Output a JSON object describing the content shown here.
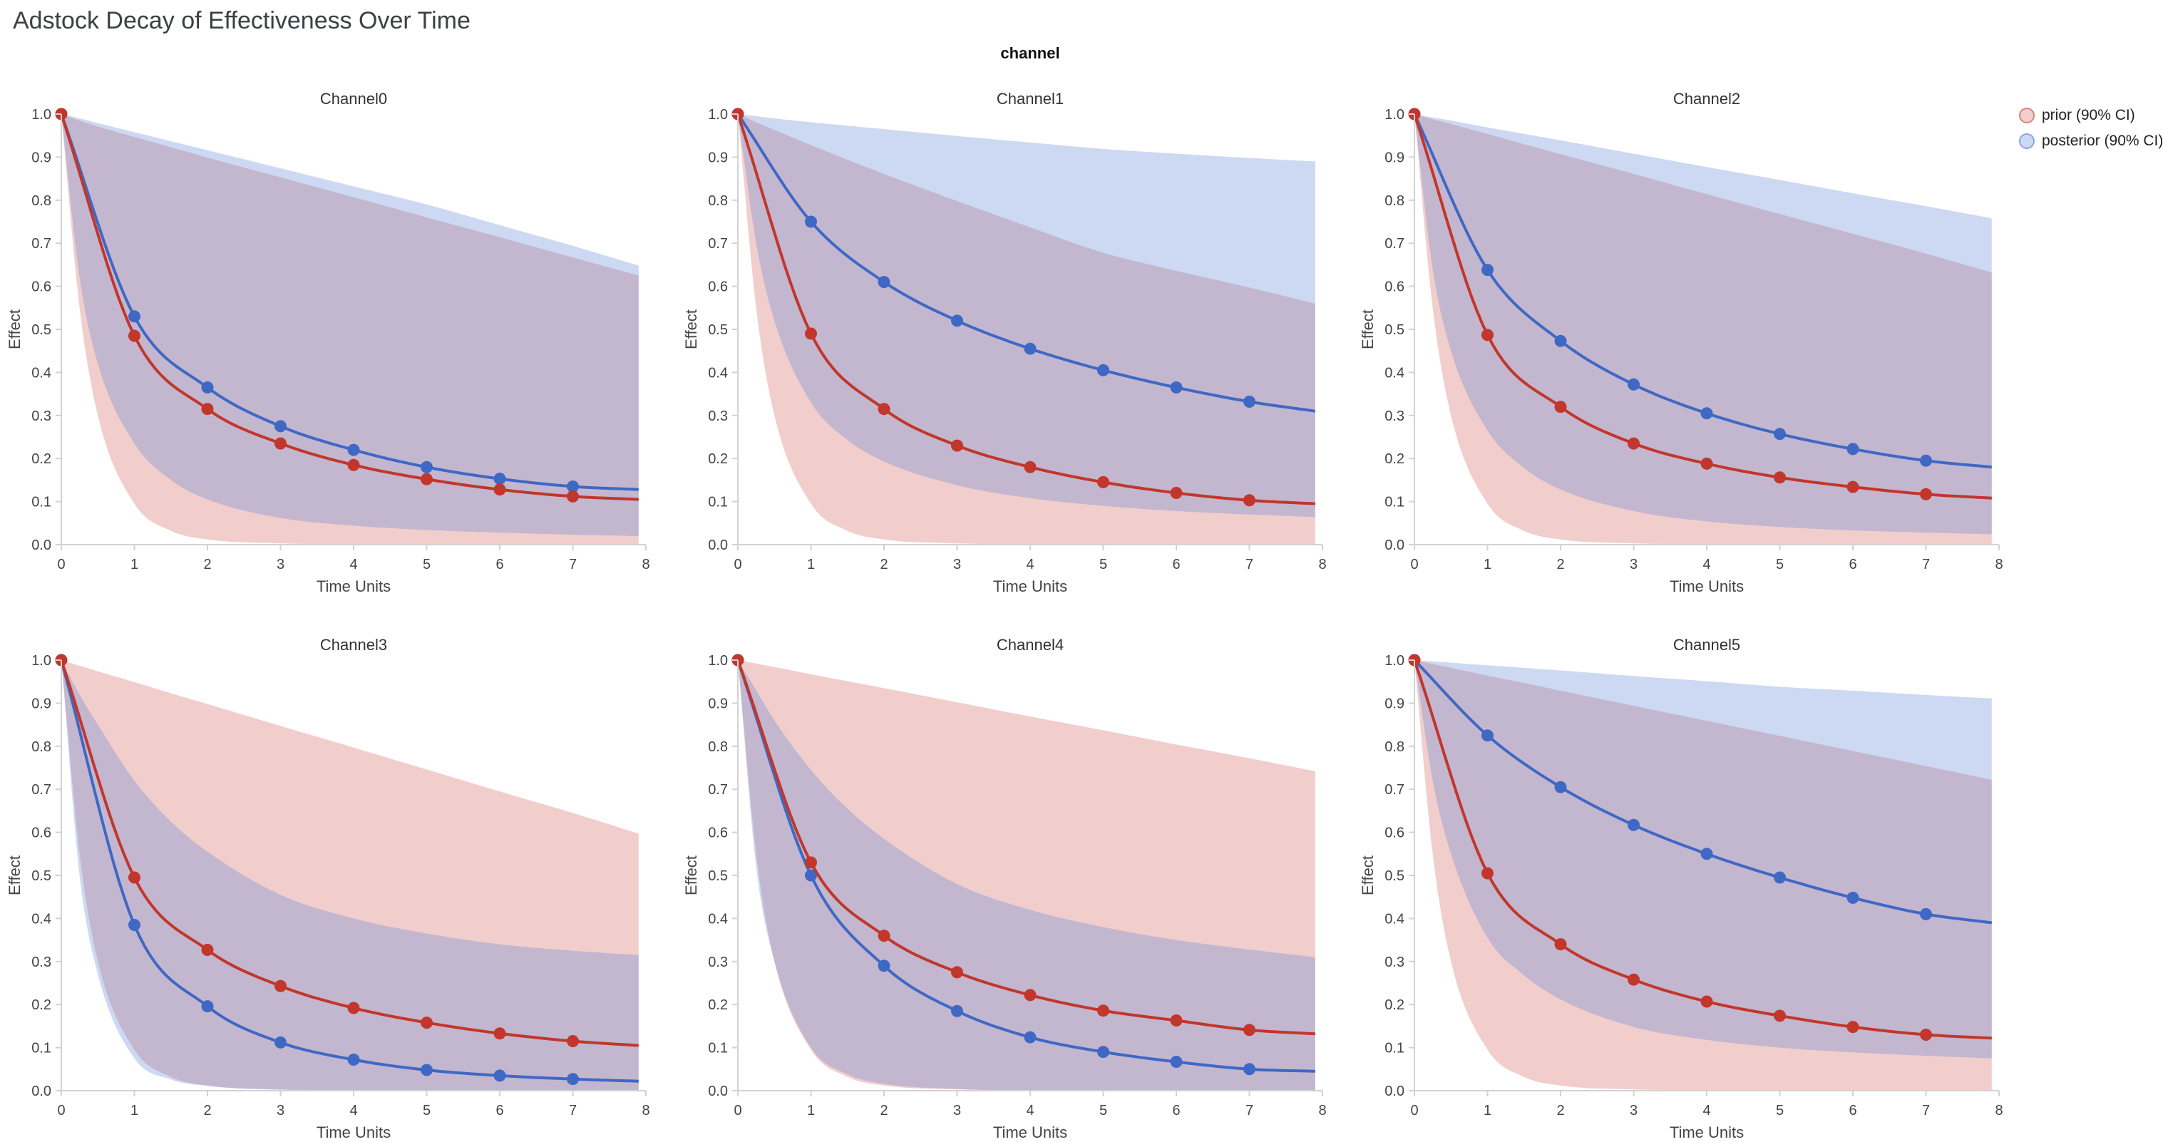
{
  "title": "Adstock Decay of Effectiveness Over Time",
  "chart_data": {
    "type": "line",
    "title": "Adstock Decay of Effectiveness Over Time",
    "facet_title": "channel",
    "xlabel": "Time Units",
    "ylabel": "Effect",
    "xlim": [
      0,
      8
    ],
    "ylim": [
      0,
      1
    ],
    "xticks": [
      0,
      1,
      2,
      3,
      4,
      5,
      6,
      7,
      8
    ],
    "yticks": [
      0,
      0.1,
      0.2,
      0.3,
      0.4,
      0.5,
      0.6,
      0.7,
      0.8,
      0.9,
      1
    ],
    "grid": false,
    "legend_position": "right-top",
    "legend_items": [
      {
        "key": "prior",
        "label": "prior (90% CI)"
      },
      {
        "key": "posterior",
        "label": "posterior (90% CI)"
      }
    ],
    "series_colors": {
      "prior": "#C2362B",
      "posterior": "#3F68C5"
    },
    "band_colors": {
      "prior": "rgba(205,80,72,0.28)",
      "posterior": "rgba(90,130,215,0.30)"
    },
    "marker_x": [
      0,
      1,
      2,
      3,
      4,
      5,
      6,
      7
    ],
    "line_x": [
      0,
      1,
      2,
      3,
      4,
      5,
      6,
      7,
      7.9
    ],
    "band_x": [
      0,
      0.25,
      0.5,
      1,
      1.5,
      2,
      3,
      4,
      5,
      6,
      7,
      7.9
    ],
    "facets": [
      {
        "name": "Channel0",
        "prior": {
          "mean": [
            1,
            0.485,
            0.315,
            0.235,
            0.185,
            0.152,
            0.128,
            0.112,
            0.105
          ],
          "upper": [
            1,
            0.985,
            0.971,
            0.947,
            0.923,
            0.899,
            0.853,
            0.807,
            0.76,
            0.714,
            0.667,
            0.625
          ],
          "lower": [
            1,
            0.55,
            0.3,
            0.095,
            0.032,
            0.012,
            0.003,
            0.001,
            0.001,
            0.001,
            0.001,
            0.001
          ]
        },
        "posterior": {
          "mean": [
            1,
            0.53,
            0.365,
            0.275,
            0.22,
            0.18,
            0.153,
            0.135,
            0.128
          ],
          "upper": [
            1,
            0.99,
            0.979,
            0.958,
            0.937,
            0.916,
            0.874,
            0.832,
            0.79,
            0.742,
            0.694,
            0.648
          ],
          "lower": [
            1,
            0.62,
            0.42,
            0.235,
            0.15,
            0.105,
            0.062,
            0.044,
            0.034,
            0.028,
            0.023,
            0.02
          ]
        }
      },
      {
        "name": "Channel1",
        "prior": {
          "mean": [
            1,
            0.49,
            0.315,
            0.23,
            0.18,
            0.145,
            0.12,
            0.103,
            0.095
          ],
          "upper": [
            1,
            0.981,
            0.963,
            0.928,
            0.894,
            0.861,
            0.798,
            0.737,
            0.678,
            0.636,
            0.597,
            0.56
          ],
          "lower": [
            1,
            0.55,
            0.3,
            0.095,
            0.032,
            0.012,
            0.003,
            0.001,
            0.001,
            0.001,
            0.001,
            0.001
          ]
        },
        "posterior": {
          "mean": [
            1,
            0.75,
            0.61,
            0.52,
            0.455,
            0.405,
            0.365,
            0.332,
            0.31
          ],
          "upper": [
            1,
            0.995,
            0.99,
            0.981,
            0.973,
            0.965,
            0.949,
            0.934,
            0.919,
            0.908,
            0.898,
            0.89
          ],
          "lower": [
            1,
            0.7,
            0.52,
            0.33,
            0.243,
            0.193,
            0.138,
            0.108,
            0.09,
            0.078,
            0.07,
            0.064
          ]
        }
      },
      {
        "name": "Channel2",
        "prior": {
          "mean": [
            1,
            0.487,
            0.32,
            0.235,
            0.188,
            0.156,
            0.134,
            0.117,
            0.108
          ],
          "upper": [
            1,
            0.988,
            0.977,
            0.954,
            0.93,
            0.907,
            0.861,
            0.814,
            0.768,
            0.722,
            0.676,
            0.632
          ],
          "lower": [
            1,
            0.55,
            0.3,
            0.095,
            0.032,
            0.012,
            0.003,
            0.001,
            0.001,
            0.001,
            0.001,
            0.001
          ]
        },
        "posterior": {
          "mean": [
            1,
            0.638,
            0.473,
            0.372,
            0.305,
            0.257,
            0.222,
            0.195,
            0.18
          ],
          "upper": [
            1,
            0.992,
            0.985,
            0.969,
            0.954,
            0.939,
            0.908,
            0.877,
            0.847,
            0.816,
            0.786,
            0.758
          ],
          "lower": [
            1,
            0.64,
            0.45,
            0.265,
            0.178,
            0.128,
            0.078,
            0.054,
            0.041,
            0.033,
            0.028,
            0.024
          ]
        }
      },
      {
        "name": "Channel3",
        "prior": {
          "mean": [
            1,
            0.495,
            0.327,
            0.243,
            0.192,
            0.158,
            0.133,
            0.115,
            0.105
          ],
          "upper": [
            1,
            0.987,
            0.974,
            0.949,
            0.923,
            0.898,
            0.847,
            0.797,
            0.746,
            0.695,
            0.645,
            0.597
          ],
          "lower": [
            1,
            0.55,
            0.3,
            0.095,
            0.032,
            0.012,
            0.003,
            0.001,
            0.001,
            0.001,
            0.001,
            0.001
          ]
        },
        "posterior": {
          "mean": [
            1,
            0.385,
            0.196,
            0.112,
            0.072,
            0.048,
            0.035,
            0.027,
            0.022
          ],
          "upper": [
            1,
            0.92,
            0.85,
            0.72,
            0.625,
            0.555,
            0.455,
            0.4,
            0.365,
            0.34,
            0.325,
            0.315
          ],
          "lower": [
            1,
            0.5,
            0.27,
            0.075,
            0.026,
            0.011,
            0.002,
            0.001,
            0.001,
            0.001,
            0.001,
            0.001
          ]
        }
      },
      {
        "name": "Channel4",
        "prior": {
          "mean": [
            1,
            0.53,
            0.36,
            0.275,
            0.222,
            0.186,
            0.163,
            0.141,
            0.132
          ],
          "upper": [
            1,
            0.992,
            0.984,
            0.967,
            0.951,
            0.935,
            0.902,
            0.869,
            0.837,
            0.804,
            0.772,
            0.742
          ],
          "lower": [
            1,
            0.55,
            0.3,
            0.095,
            0.032,
            0.012,
            0.003,
            0.001,
            0.001,
            0.001,
            0.001,
            0.001
          ]
        },
        "posterior": {
          "mean": [
            1,
            0.5,
            0.29,
            0.185,
            0.124,
            0.09,
            0.067,
            0.05,
            0.045
          ],
          "upper": [
            1,
            0.93,
            0.86,
            0.745,
            0.655,
            0.585,
            0.48,
            0.42,
            0.38,
            0.35,
            0.328,
            0.31
          ],
          "lower": [
            1,
            0.52,
            0.3,
            0.1,
            0.038,
            0.016,
            0.004,
            0.001,
            0.001,
            0.001,
            0.001,
            0.001
          ]
        }
      },
      {
        "name": "Channel5",
        "prior": {
          "mean": [
            1,
            0.505,
            0.34,
            0.258,
            0.207,
            0.174,
            0.148,
            0.13,
            0.122
          ],
          "upper": [
            1,
            0.991,
            0.982,
            0.964,
            0.947,
            0.929,
            0.894,
            0.859,
            0.824,
            0.789,
            0.754,
            0.722
          ],
          "lower": [
            1,
            0.55,
            0.3,
            0.095,
            0.032,
            0.012,
            0.003,
            0.001,
            0.001,
            0.001,
            0.001,
            0.001
          ]
        },
        "posterior": {
          "mean": [
            1,
            0.825,
            0.705,
            0.617,
            0.55,
            0.495,
            0.448,
            0.41,
            0.39
          ],
          "upper": [
            1,
            0.997,
            0.994,
            0.988,
            0.982,
            0.976,
            0.963,
            0.951,
            0.938,
            0.929,
            0.919,
            0.911
          ],
          "lower": [
            1,
            0.72,
            0.55,
            0.355,
            0.268,
            0.212,
            0.148,
            0.118,
            0.1,
            0.089,
            0.081,
            0.075
          ]
        }
      }
    ]
  }
}
